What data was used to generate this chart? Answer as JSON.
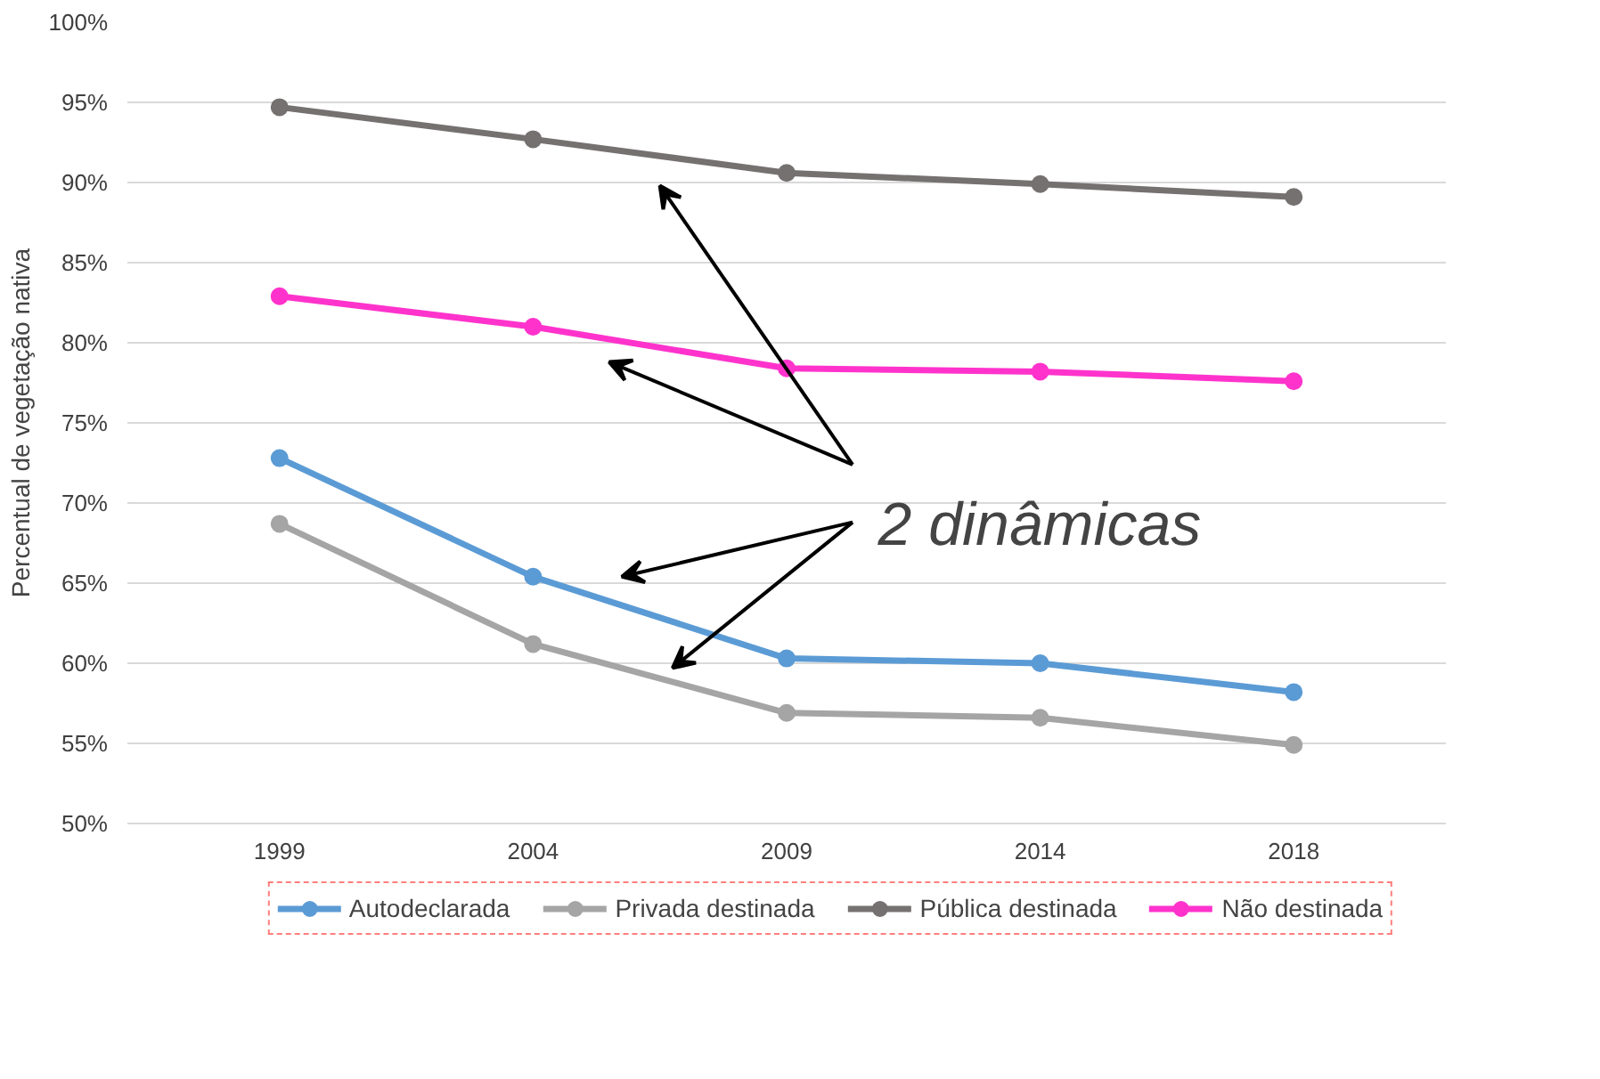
{
  "chart_data": {
    "type": "line",
    "ylabel": "Percentual de vegetação nativa",
    "categories": [
      "1999",
      "2004",
      "2009",
      "2014",
      "2018"
    ],
    "series": [
      {
        "name": "Autodeclarada",
        "color": "#5b9bd5",
        "values": [
          72.8,
          65.4,
          60.3,
          60.0,
          58.2
        ]
      },
      {
        "name": "Privada destinada",
        "color": "#a5a5a5",
        "values": [
          68.7,
          61.2,
          56.9,
          56.6,
          54.9
        ]
      },
      {
        "name": "Pública destinada",
        "color": "#767171",
        "values": [
          94.7,
          92.7,
          90.6,
          89.9,
          89.1
        ]
      },
      {
        "name": "Não destinada",
        "color": "#ff33cc",
        "values": [
          82.9,
          81.0,
          78.4,
          78.2,
          77.6
        ]
      }
    ],
    "ylim": [
      50,
      100
    ],
    "yticks": [
      {
        "value": 50,
        "label": "50%"
      },
      {
        "value": 55,
        "label": "55%"
      },
      {
        "value": 60,
        "label": "60%"
      },
      {
        "value": 65,
        "label": "65%"
      },
      {
        "value": 70,
        "label": "70%"
      },
      {
        "value": 75,
        "label": "75%"
      },
      {
        "value": 80,
        "label": "80%"
      },
      {
        "value": 85,
        "label": "85%"
      },
      {
        "value": 90,
        "label": "90%"
      },
      {
        "value": 95,
        "label": "95%"
      },
      {
        "value": 100,
        "label": "100%"
      }
    ],
    "grid": "y",
    "legend": "bottom",
    "marker": "circle",
    "line_style": "solid",
    "annotations": [
      "2 dinâmicas"
    ]
  }
}
